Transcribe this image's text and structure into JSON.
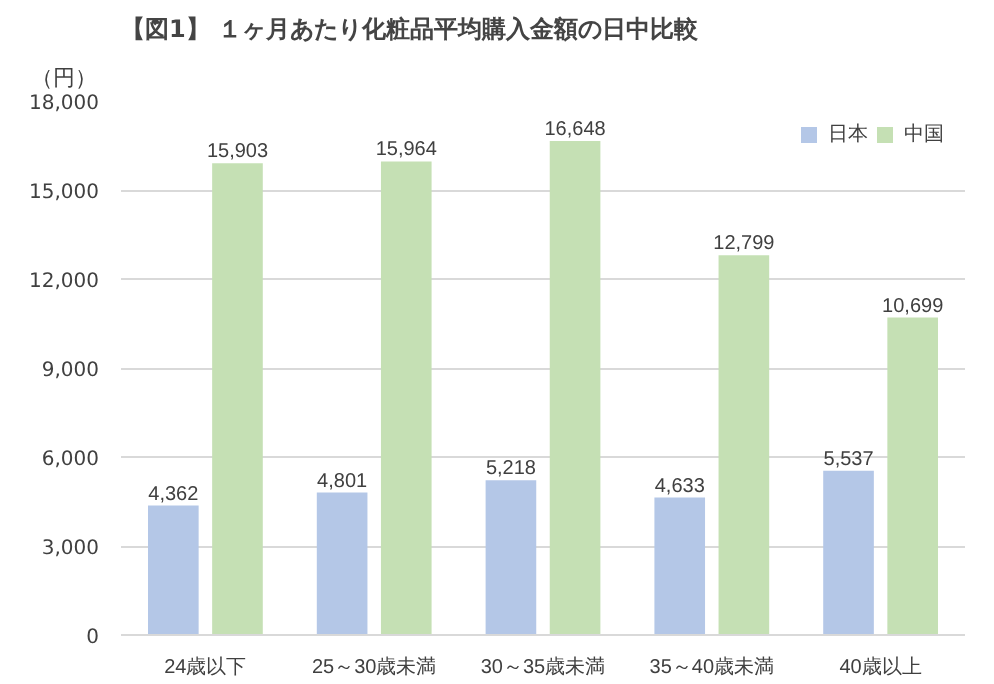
{
  "chart_data": {
    "type": "bar",
    "title": "【図1】 １ヶ月あたり化粧品平均購入金額の日中比較",
    "ylabel": "（円）",
    "categories": [
      "24歳以下",
      "25～30歳未満",
      "30～35歳未満",
      "35～40歳未満",
      "40歳以上"
    ],
    "series": [
      {
        "name": "日本",
        "color": "#b4c7e7",
        "values": [
          4362,
          4801,
          5218,
          4633,
          5537
        ],
        "value_labels": [
          "4,362",
          "4,801",
          "5,218",
          "4,633",
          "5,537"
        ]
      },
      {
        "name": "中国",
        "color": "#c5e0b4",
        "values": [
          15903,
          15964,
          16648,
          12799,
          10699
        ],
        "value_labels": [
          "15,903",
          "15,964",
          "16,648",
          "12,799",
          "10,699"
        ]
      }
    ],
    "ylim": [
      0,
      18000
    ],
    "yticks": [
      {
        "value": 0,
        "label": "0"
      },
      {
        "value": 3000,
        "label": "3,000"
      },
      {
        "value": 6000,
        "label": "6,000"
      },
      {
        "value": 9000,
        "label": "9,000"
      },
      {
        "value": 12000,
        "label": "12,000"
      },
      {
        "value": 15000,
        "label": "15,000"
      },
      {
        "value": 18000,
        "label": "18,000"
      }
    ],
    "grid": "y",
    "legend": "top right"
  }
}
